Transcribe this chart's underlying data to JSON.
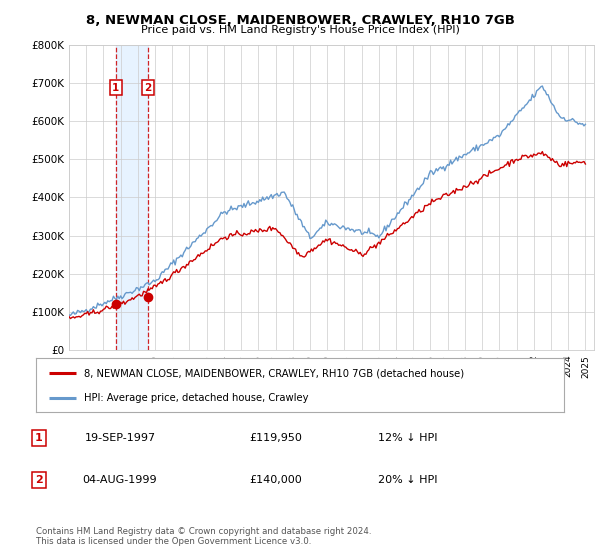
{
  "title": "8, NEWMAN CLOSE, MAIDENBOWER, CRAWLEY, RH10 7GB",
  "subtitle": "Price paid vs. HM Land Registry's House Price Index (HPI)",
  "legend_line1": "8, NEWMAN CLOSE, MAIDENBOWER, CRAWLEY, RH10 7GB (detached house)",
  "legend_line2": "HPI: Average price, detached house, Crawley",
  "footer": "Contains HM Land Registry data © Crown copyright and database right 2024.\nThis data is licensed under the Open Government Licence v3.0.",
  "purchases": [
    {
      "num": 1,
      "date": "19-SEP-1997",
      "price": 119950,
      "pct": "12%",
      "dir": "↓",
      "x": 1997.72
    },
    {
      "num": 2,
      "date": "04-AUG-1999",
      "price": 140000,
      "pct": "20%",
      "dir": "↓",
      "x": 1999.59
    }
  ],
  "purchase_color": "#cc0000",
  "hpi_color": "#6699cc",
  "shade_color": "#ddeeff",
  "background_color": "#ffffff",
  "grid_color": "#cccccc",
  "ylim": [
    0,
    800000
  ],
  "xlim": [
    1995.0,
    2025.5
  ],
  "yticks": [
    0,
    100000,
    200000,
    300000,
    400000,
    500000,
    600000,
    700000,
    800000
  ],
  "xticks": [
    1995,
    1996,
    1997,
    1998,
    1999,
    2000,
    2001,
    2002,
    2003,
    2004,
    2005,
    2006,
    2007,
    2008,
    2009,
    2010,
    2011,
    2012,
    2013,
    2014,
    2015,
    2016,
    2017,
    2018,
    2019,
    2020,
    2021,
    2022,
    2023,
    2024,
    2025
  ]
}
